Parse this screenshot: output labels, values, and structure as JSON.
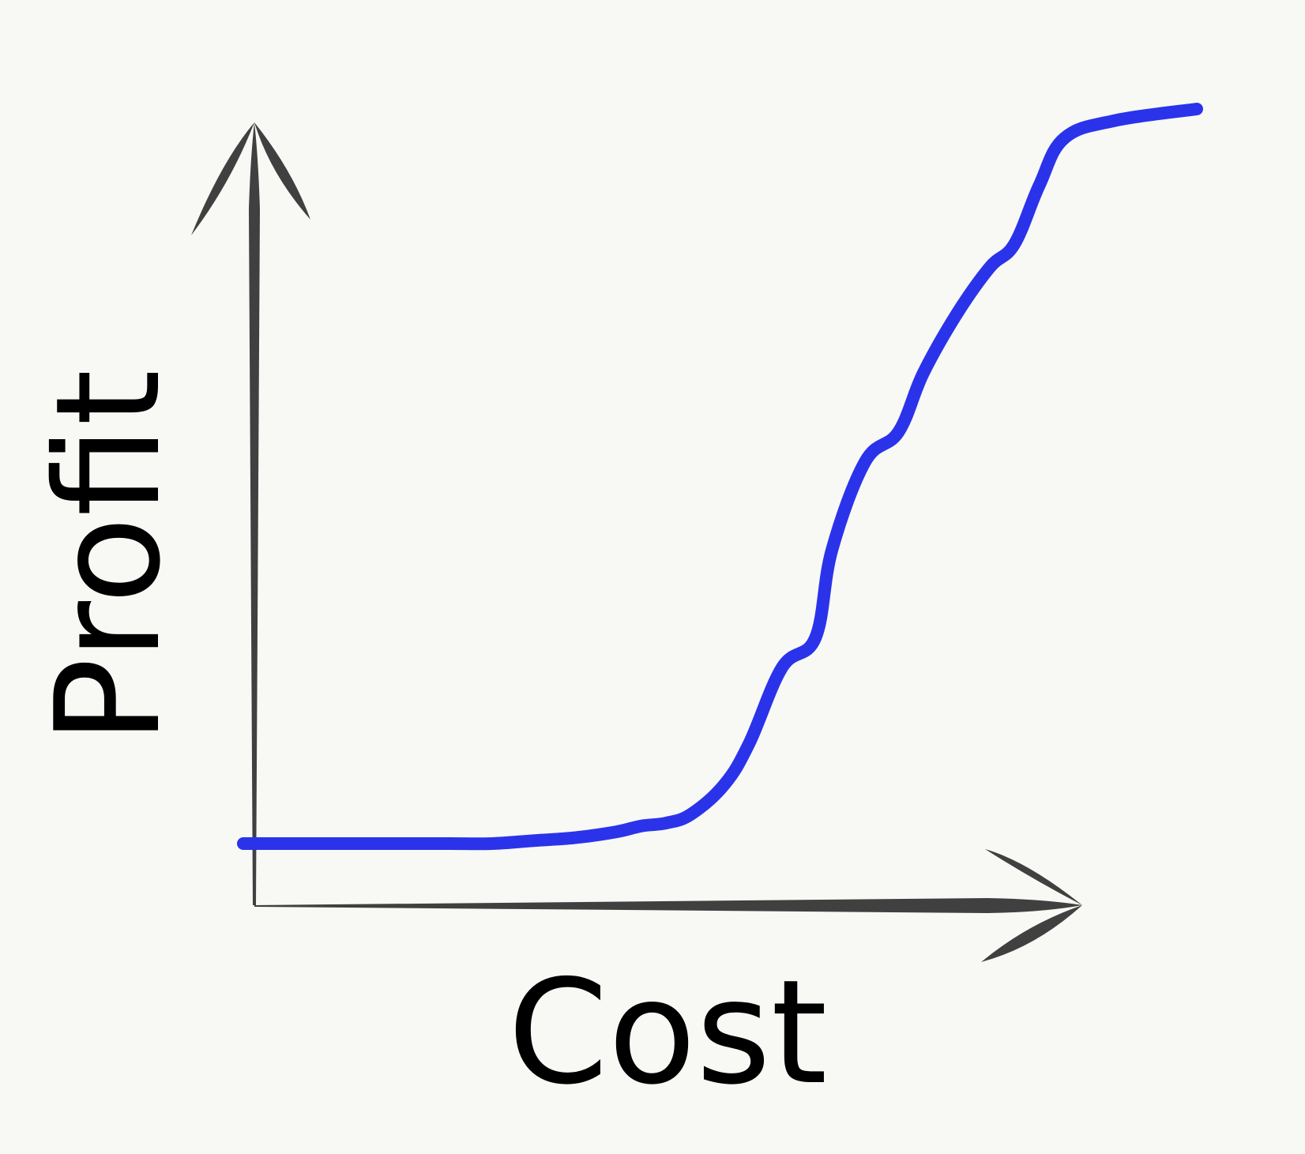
{
  "chart_data": {
    "type": "line",
    "title": "",
    "xlabel": "Cost",
    "ylabel": "Profit",
    "x": [
      0,
      0.5,
      1,
      1.5,
      2,
      2.5,
      3,
      3.5,
      4,
      4.5,
      4.8,
      5.1,
      5.4,
      5.8,
      6.1,
      6.5,
      6.9,
      7.1,
      7.5,
      7.9,
      8.2,
      8.6,
      9.0,
      9.3,
      9.6,
      9.9,
      10.5,
      11.5
    ],
    "y": [
      0,
      0,
      0,
      0,
      0,
      0,
      0,
      0.05,
      0.1,
      0.2,
      0.3,
      0.35,
      0.5,
      1.0,
      1.7,
      3.0,
      3.5,
      5.0,
      6.5,
      7.0,
      8.0,
      9.0,
      9.8,
      10.2,
      11.2,
      12.0,
      12.3,
      12.5
    ],
    "xlim": [
      0,
      11.5
    ],
    "ylim": [
      0,
      12.5
    ],
    "grid": false,
    "legend": "none",
    "colors": {
      "series": "#2a33ea",
      "axes": "#404040",
      "text": "#000000",
      "background": "#f8f8f5"
    }
  }
}
